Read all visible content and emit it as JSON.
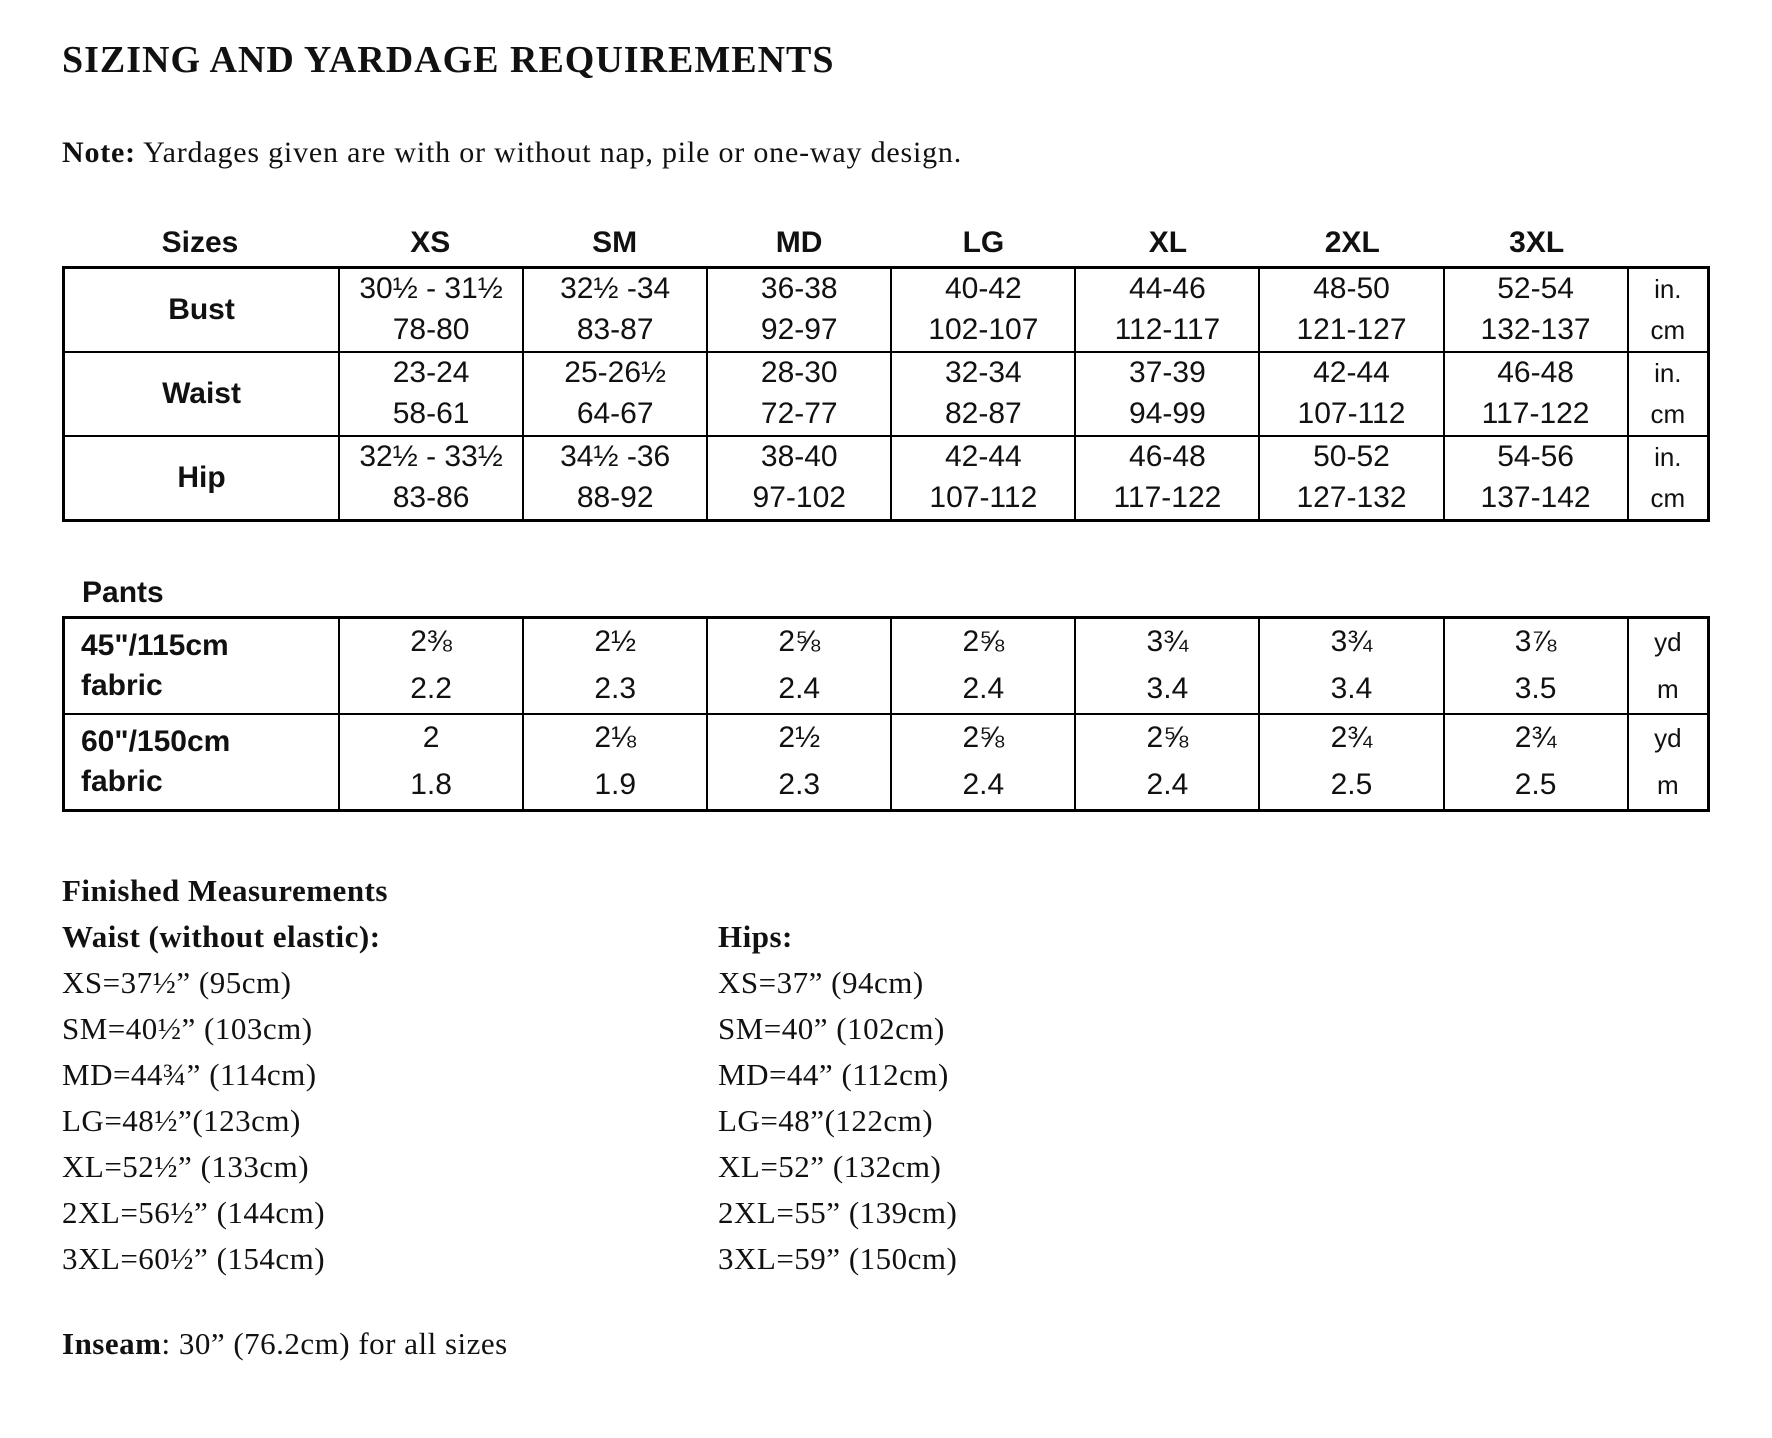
{
  "page_title": "SIZING AND YARDAGE REQUIREMENTS",
  "note": {
    "label": "Note:",
    "text": "Yardages given are with or without nap, pile or one-way design."
  },
  "size_chart": {
    "corner_label": "Sizes",
    "sizes": [
      "XS",
      "SM",
      "MD",
      "LG",
      "XL",
      "2XL",
      "3XL"
    ],
    "unit_in": "in.",
    "unit_cm": "cm",
    "rows": [
      {
        "label": "Bust",
        "inches": [
          "30½ - 31½",
          "32½ -34",
          "36-38",
          "40-42",
          "44-46",
          "48-50",
          "52-54"
        ],
        "cm": [
          "78-80",
          "83-87",
          "92-97",
          "102-107",
          "112-117",
          "121-127",
          "132-137"
        ]
      },
      {
        "label": "Waist",
        "inches": [
          "23-24",
          "25-26½",
          "28-30",
          "32-34",
          "37-39",
          "42-44",
          "46-48"
        ],
        "cm": [
          "58-61",
          "64-67",
          "72-77",
          "82-87",
          "94-99",
          "107-112",
          "117-122"
        ]
      },
      {
        "label": "Hip",
        "inches": [
          "32½ - 33½",
          "34½ -36",
          "38-40",
          "42-44",
          "46-48",
          "50-52",
          "54-56"
        ],
        "cm": [
          "83-86",
          "88-92",
          "97-102",
          "107-112",
          "117-122",
          "127-132",
          "137-142"
        ]
      }
    ]
  },
  "pants_chart": {
    "heading": "Pants",
    "unit_yd": "yd",
    "unit_m": "m",
    "rows": [
      {
        "label_line1": "45\"/115cm",
        "label_line2": "fabric",
        "yards": [
          "2⅜",
          "2½",
          "2⅝",
          "2⅝",
          "3¾",
          "3¾",
          "3⅞"
        ],
        "meters": [
          "2.2",
          "2.3",
          "2.4",
          "2.4",
          "3.4",
          "3.4",
          "3.5"
        ]
      },
      {
        "label_line1": "60\"/150cm",
        "label_line2": "fabric",
        "yards": [
          "2",
          "2⅛",
          "2½",
          "2⅝",
          "2⅝",
          "2¾",
          "2¾"
        ],
        "meters": [
          "1.8",
          "1.9",
          "2.3",
          "2.4",
          "2.4",
          "2.5",
          "2.5"
        ]
      }
    ]
  },
  "finished_measurements": {
    "heading": "Finished Measurements",
    "waist": {
      "heading": "Waist (without elastic):",
      "items": [
        "XS=37½” (95cm)",
        "SM=40½” (103cm)",
        "MD=44¾” (114cm)",
        "LG=48½”(123cm)",
        "XL=52½” (133cm)",
        "2XL=56½” (144cm)",
        "3XL=60½” (154cm)"
      ]
    },
    "hips": {
      "heading": "Hips:",
      "items": [
        "XS=37” (94cm)",
        "SM=40” (102cm)",
        "MD=44” (112cm)",
        "LG=48”(122cm)",
        "XL=52” (132cm)",
        "2XL=55” (139cm)",
        "3XL=59” (150cm)"
      ]
    }
  },
  "inseam": {
    "label": "Inseam",
    "text": ": 30” (76.2cm) for all sizes"
  }
}
